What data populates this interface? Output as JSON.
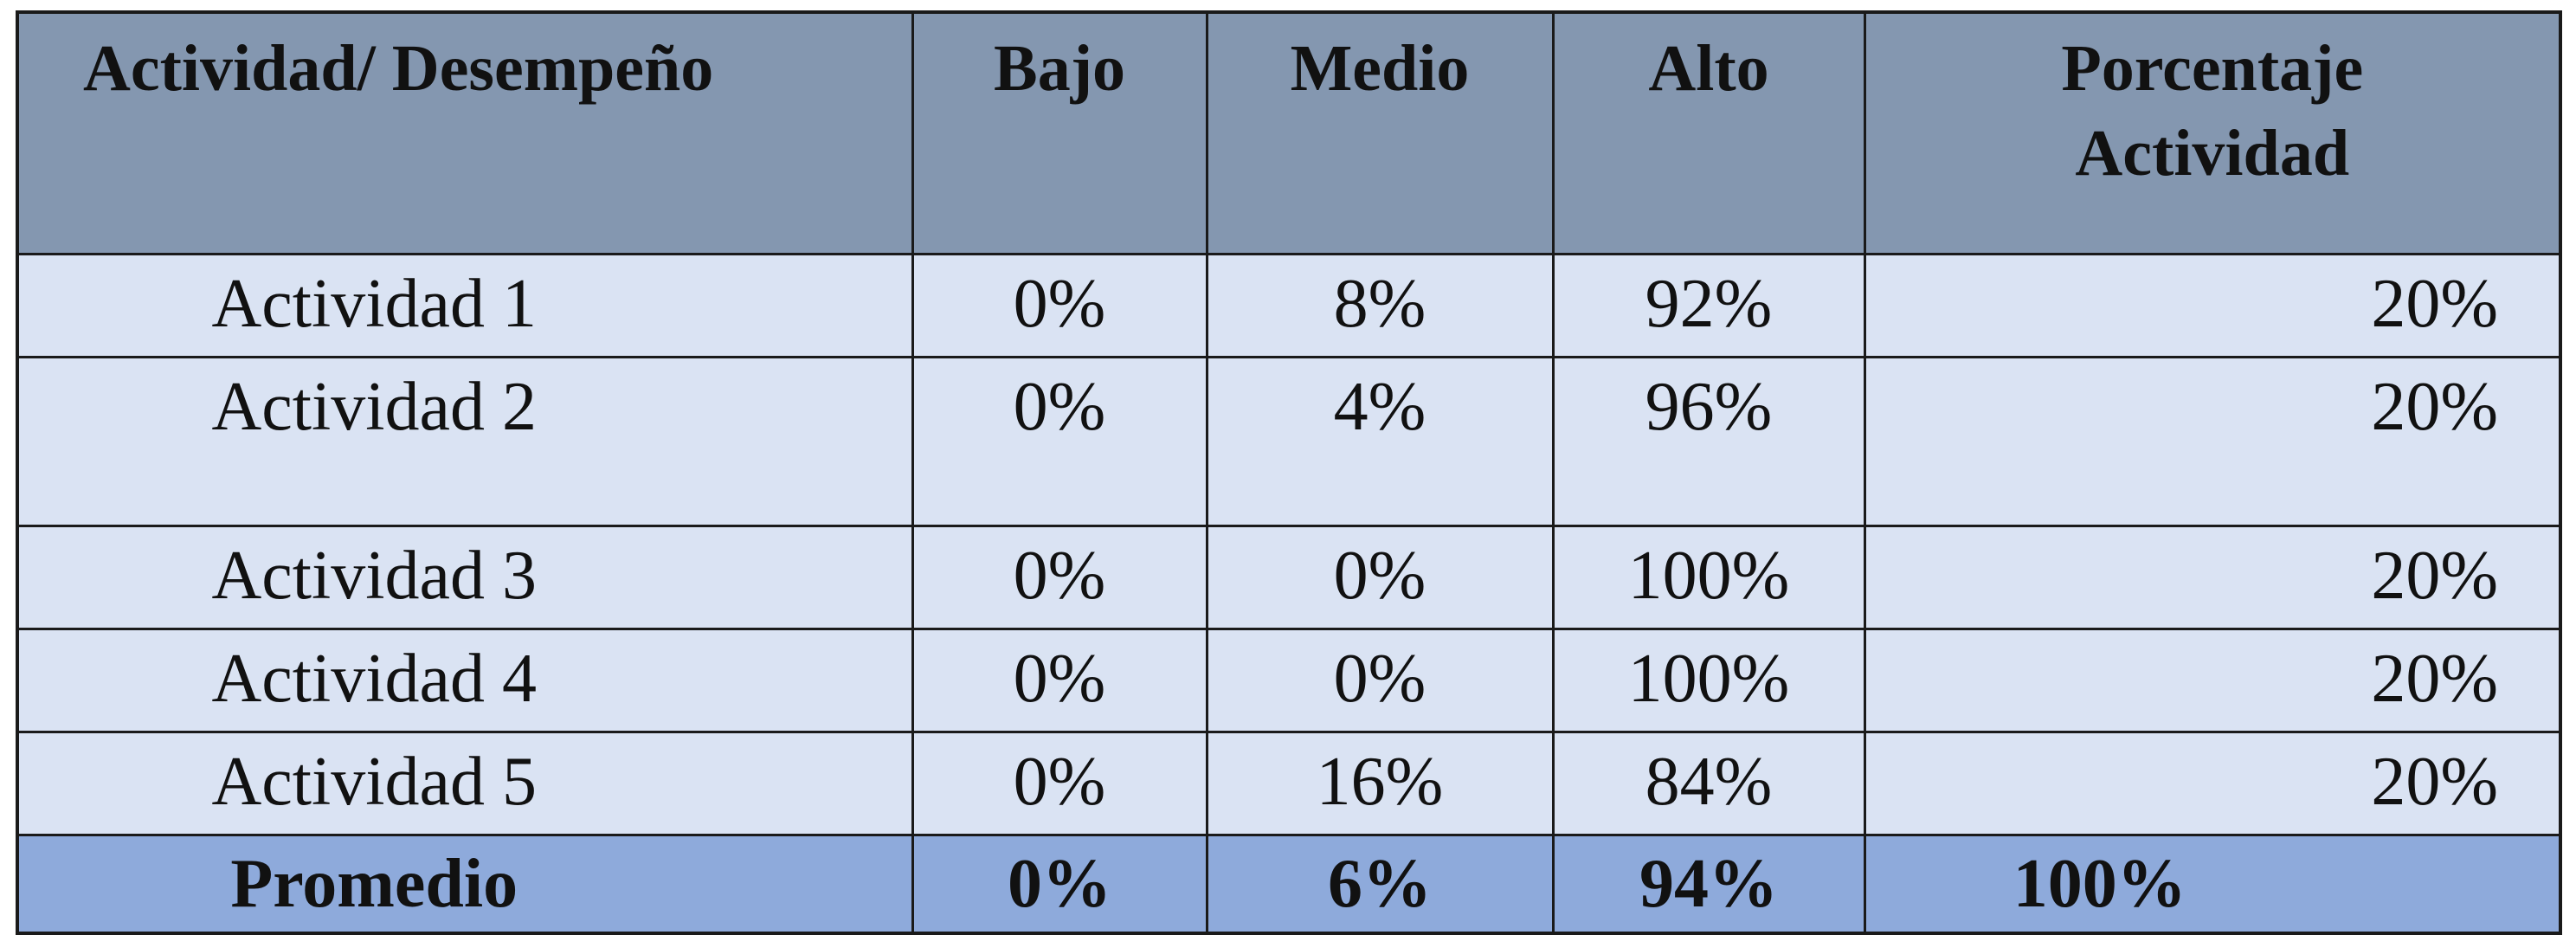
{
  "table": {
    "headers": {
      "activity": "Actividad/ Desempeño",
      "low": "Bajo",
      "medium": "Medio",
      "high": "Alto",
      "percent_line1": "Porcentaje",
      "percent_line2": "Actividad"
    },
    "rows": [
      {
        "activity": "Actividad 1",
        "low": "0%",
        "medium": "8%",
        "high": "92%",
        "percent": "20%"
      },
      {
        "activity": "Actividad 2",
        "low": "0%",
        "medium": "4%",
        "high": "96%",
        "percent": "20%"
      },
      {
        "activity": "Actividad 3",
        "low": "0%",
        "medium": "0%",
        "high": "100%",
        "percent": "20%"
      },
      {
        "activity": "Actividad 4",
        "low": "0%",
        "medium": "0%",
        "high": "100%",
        "percent": "20%"
      },
      {
        "activity": "Actividad 5",
        "low": "0%",
        "medium": "16%",
        "high": "84%",
        "percent": "20%"
      }
    ],
    "footer": {
      "label": "Promedio",
      "low": "0%",
      "medium": "6%",
      "high": "94%",
      "percent": "100%"
    }
  },
  "colors": {
    "header_bg": "#8497b0",
    "row_bg": "#dae3f3",
    "footer_bg": "#8eaadb",
    "border": "#1a1a1a"
  }
}
